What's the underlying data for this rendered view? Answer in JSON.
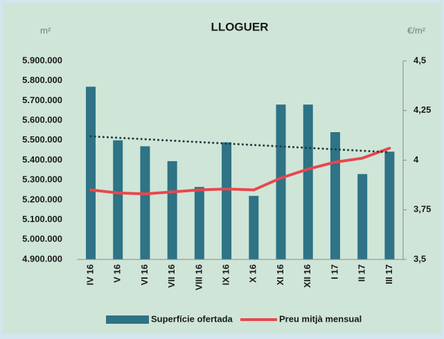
{
  "chart_data": {
    "type": "bar",
    "title": "LLOGUER",
    "y_unit": "m²",
    "y2_unit": "€/m²",
    "categories": [
      "IV 16",
      "V 16",
      "VI 16",
      "VII 16",
      "VIII 16",
      "IX 16",
      "X 16",
      "XI 16",
      "XII 16",
      "I 17",
      "II 17",
      "III 17"
    ],
    "series": [
      {
        "name": "Superfície ofertada",
        "type": "bar",
        "color": "#2e7386",
        "values": [
          5770000,
          5500000,
          5470000,
          5395000,
          5265000,
          5490000,
          5220000,
          5680000,
          5680000,
          5541000,
          5330000,
          5443000
        ]
      },
      {
        "name": "Preu mitjà mensual",
        "type": "line",
        "axis": "y2",
        "color": "#e8474c",
        "values": [
          3.85,
          3.835,
          3.83,
          3.84,
          3.85,
          3.855,
          3.85,
          3.91,
          3.955,
          3.99,
          4.01,
          4.06
        ]
      }
    ],
    "trendline": {
      "color": "#1f3d3f",
      "values": [
        5520000,
        5440000
      ]
    },
    "ylim": [
      4900000,
      5900000
    ],
    "yticks": [
      {
        "value": 4900000,
        "label": "4.900.000"
      },
      {
        "value": 5000000,
        "label": "5.000.000"
      },
      {
        "value": 5100000,
        "label": "5.100.000"
      },
      {
        "value": 5200000,
        "label": "5.200.000"
      },
      {
        "value": 5300000,
        "label": "5.300.000"
      },
      {
        "value": 5400000,
        "label": "5.400.000"
      },
      {
        "value": 5500000,
        "label": "5.500.000"
      },
      {
        "value": 5600000,
        "label": "5.600.000"
      },
      {
        "value": 5700000,
        "label": "5.700.000"
      },
      {
        "value": 5800000,
        "label": "5.800.000"
      },
      {
        "value": 5900000,
        "label": "5.900.000"
      }
    ],
    "y2lim": [
      3.5,
      4.5
    ],
    "y2ticks": [
      {
        "value": 3.5,
        "label": "3,5"
      },
      {
        "value": 3.75,
        "label": "3,75"
      },
      4,
      {
        "value": 4.25,
        "label": "4,25"
      },
      {
        "value": 4.5,
        "label": "4,5"
      }
    ],
    "legend": "bottom"
  }
}
